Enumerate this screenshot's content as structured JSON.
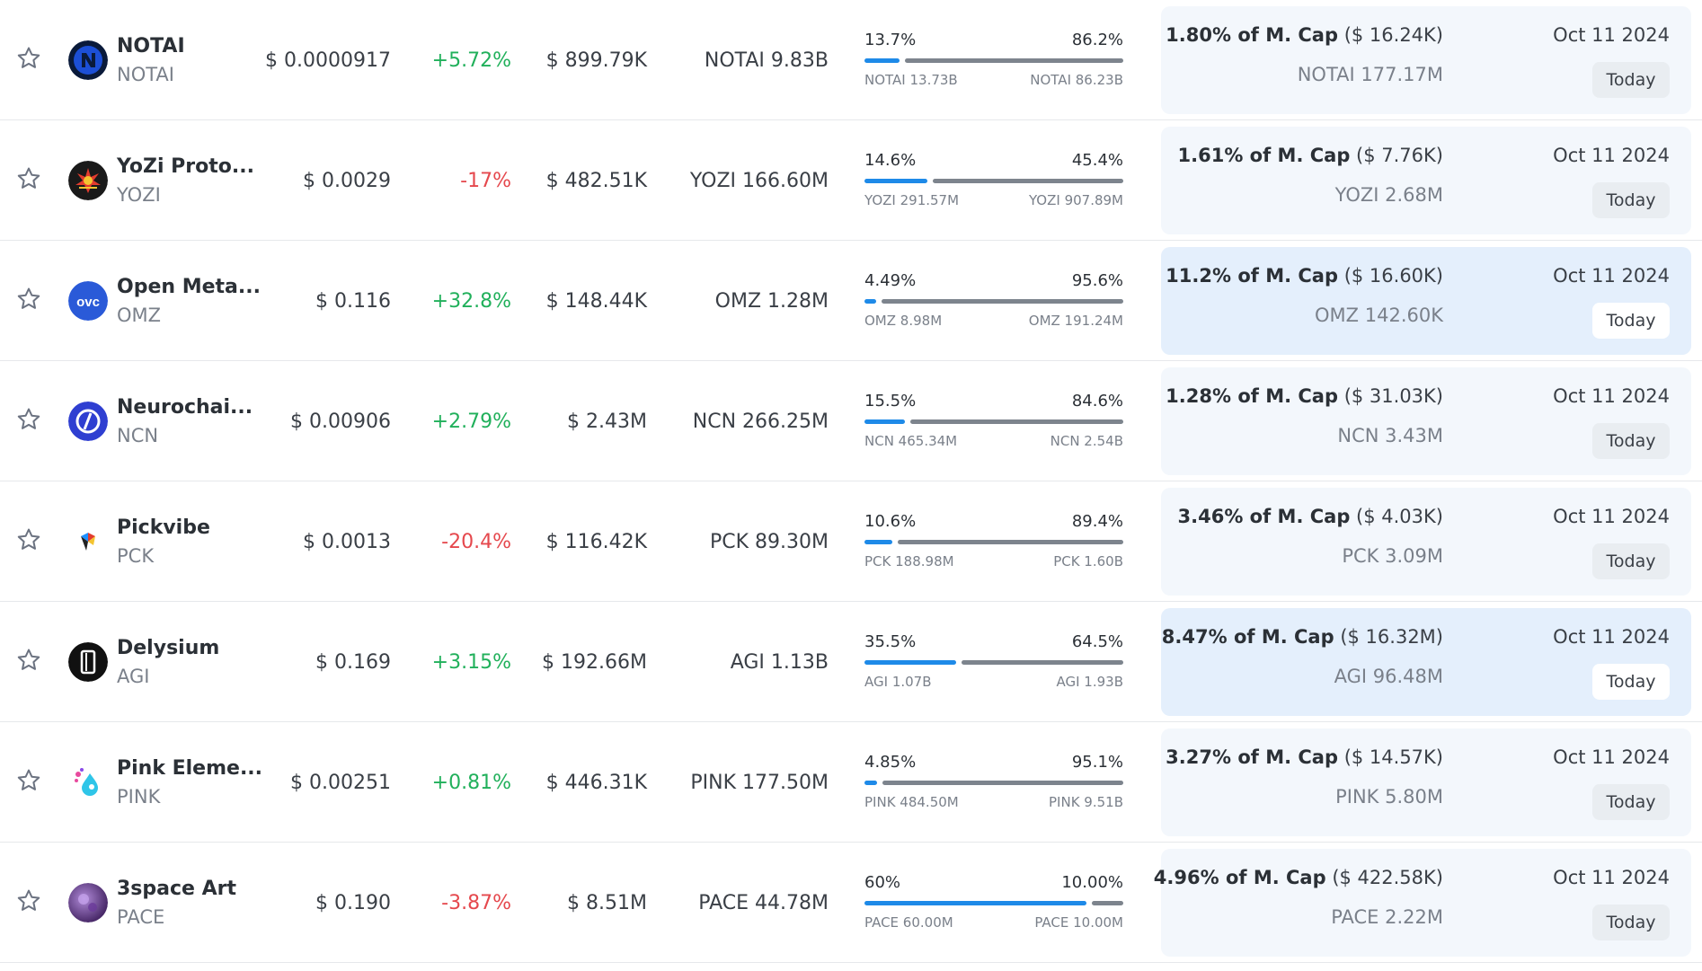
{
  "rows": [
    {
      "name": "NOTAI",
      "symbol": "NOTAI",
      "logo_icon": "notai-logo-icon",
      "price": "$ 0.0000917",
      "change": "+5.72%",
      "change_dir": "pos",
      "market_cap": "$ 899.79K",
      "supply": "NOTAI 9.83B",
      "dist_left_pct": "13.7%",
      "dist_right_pct": "86.2%",
      "dist_fill": 0.137,
      "dist_left_amt": "NOTAI 13.73B",
      "dist_right_amt": "NOTAI 86.23B",
      "unlock_pct": "1.80% of M. Cap",
      "unlock_usd": "($ 16.24K)",
      "unlock_amt": "NOTAI 177.17M",
      "unlock_date": "Oct 11 2024",
      "unlock_when": "Today",
      "highlight": false
    },
    {
      "name": "YoZi Proto...",
      "symbol": "YOZI",
      "logo_icon": "yozi-logo-icon",
      "price": "$ 0.0029",
      "change": "-17%",
      "change_dir": "neg",
      "market_cap": "$ 482.51K",
      "supply": "YOZI 166.60M",
      "dist_left_pct": "14.6%",
      "dist_right_pct": "45.4%",
      "dist_fill": 0.243,
      "dist_left_amt": "YOZI 291.57M",
      "dist_right_amt": "YOZI 907.89M",
      "unlock_pct": "1.61% of M. Cap",
      "unlock_usd": "($ 7.76K)",
      "unlock_amt": "YOZI 2.68M",
      "unlock_date": "Oct 11 2024",
      "unlock_when": "Today",
      "highlight": false
    },
    {
      "name": "Open Meta...",
      "symbol": "OMZ",
      "logo_icon": "omz-logo-icon",
      "price": "$ 0.116",
      "change": "+32.8%",
      "change_dir": "pos",
      "market_cap": "$ 148.44K",
      "supply": "OMZ 1.28M",
      "dist_left_pct": "4.49%",
      "dist_right_pct": "95.6%",
      "dist_fill": 0.045,
      "dist_left_amt": "OMZ 8.98M",
      "dist_right_amt": "OMZ 191.24M",
      "unlock_pct": "11.2% of M. Cap",
      "unlock_usd": "($ 16.60K)",
      "unlock_amt": "OMZ 142.60K",
      "unlock_date": "Oct 11 2024",
      "unlock_when": "Today",
      "highlight": true
    },
    {
      "name": "Neurochai...",
      "symbol": "NCN",
      "logo_icon": "ncn-logo-icon",
      "price": "$ 0.00906",
      "change": "+2.79%",
      "change_dir": "pos",
      "market_cap": "$ 2.43M",
      "supply": "NCN 266.25M",
      "dist_left_pct": "15.5%",
      "dist_right_pct": "84.6%",
      "dist_fill": 0.155,
      "dist_left_amt": "NCN 465.34M",
      "dist_right_amt": "NCN 2.54B",
      "unlock_pct": "1.28% of M. Cap",
      "unlock_usd": "($ 31.03K)",
      "unlock_amt": "NCN 3.43M",
      "unlock_date": "Oct 11 2024",
      "unlock_when": "Today",
      "highlight": false
    },
    {
      "name": "Pickvibe",
      "symbol": "PCK",
      "logo_icon": "pickvibe-logo-icon",
      "price": "$ 0.0013",
      "change": "-20.4%",
      "change_dir": "neg",
      "market_cap": "$ 116.42K",
      "supply": "PCK 89.30M",
      "dist_left_pct": "10.6%",
      "dist_right_pct": "89.4%",
      "dist_fill": 0.106,
      "dist_left_amt": "PCK 188.98M",
      "dist_right_amt": "PCK 1.60B",
      "unlock_pct": "3.46% of M. Cap",
      "unlock_usd": "($ 4.03K)",
      "unlock_amt": "PCK 3.09M",
      "unlock_date": "Oct 11 2024",
      "unlock_when": "Today",
      "highlight": false
    },
    {
      "name": "Delysium",
      "symbol": "AGI",
      "logo_icon": "delysium-logo-icon",
      "price": "$ 0.169",
      "change": "+3.15%",
      "change_dir": "pos",
      "market_cap": "$ 192.66M",
      "supply": "AGI 1.13B",
      "dist_left_pct": "35.5%",
      "dist_right_pct": "64.5%",
      "dist_fill": 0.355,
      "dist_left_amt": "AGI 1.07B",
      "dist_right_amt": "AGI 1.93B",
      "unlock_pct": "8.47% of M. Cap",
      "unlock_usd": "($ 16.32M)",
      "unlock_amt": "AGI 96.48M",
      "unlock_date": "Oct 11 2024",
      "unlock_when": "Today",
      "highlight": true
    },
    {
      "name": "Pink Eleme...",
      "symbol": "PINK",
      "logo_icon": "pink-logo-icon",
      "price": "$ 0.00251",
      "change": "+0.81%",
      "change_dir": "pos",
      "market_cap": "$ 446.31K",
      "supply": "PINK 177.50M",
      "dist_left_pct": "4.85%",
      "dist_right_pct": "95.1%",
      "dist_fill": 0.049,
      "dist_left_amt": "PINK 484.50M",
      "dist_right_amt": "PINK 9.51B",
      "unlock_pct": "3.27% of M. Cap",
      "unlock_usd": "($ 14.57K)",
      "unlock_amt": "PINK 5.80M",
      "unlock_date": "Oct 11 2024",
      "unlock_when": "Today",
      "highlight": false
    },
    {
      "name": "3space Art",
      "symbol": "PACE",
      "logo_icon": "3space-logo-icon",
      "price": "$ 0.190",
      "change": "-3.87%",
      "change_dir": "neg",
      "market_cap": "$ 8.51M",
      "supply": "PACE 44.78M",
      "dist_left_pct": "60%",
      "dist_right_pct": "10.00%",
      "dist_fill": 0.857,
      "dist_left_amt": "PACE 60.00M",
      "dist_right_amt": "PACE 10.00M",
      "unlock_pct": "4.96% of M. Cap",
      "unlock_usd": "($ 422.58K)",
      "unlock_amt": "PACE 2.22M",
      "unlock_date": "Oct 11 2024",
      "unlock_when": "Today",
      "highlight": false
    }
  ],
  "colors": {
    "positive": "#21b05b",
    "negative": "#e5484d",
    "bar_fill": "#1e8ae8",
    "bar_rest": "#7d848d",
    "unlock_bg": "#f3f7fc",
    "unlock_bg_highlight": "#e4effc"
  }
}
